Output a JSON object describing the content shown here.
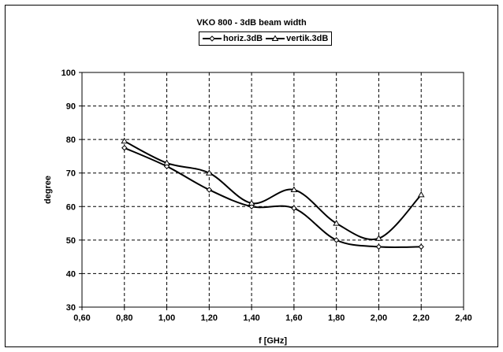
{
  "chart_data": {
    "type": "line",
    "title": "VKO 800 - 3dB beam width",
    "xlabel": "f [GHz]",
    "ylabel": "degree",
    "xlim": [
      0.6,
      2.4
    ],
    "ylim": [
      30,
      100
    ],
    "x_ticks": [
      "0,60",
      "0,80",
      "1,00",
      "1,20",
      "1,40",
      "1,60",
      "1,80",
      "2,00",
      "2,20",
      "2,40"
    ],
    "y_ticks": [
      "30",
      "40",
      "50",
      "60",
      "70",
      "80",
      "90",
      "100"
    ],
    "grid": true,
    "legend_position": "top-center",
    "series": [
      {
        "name": "horiz.3dB",
        "marker": "diamond",
        "color": "#000000",
        "x": [
          0.8,
          1.0,
          1.2,
          1.4,
          1.6,
          1.8,
          2.0,
          2.2
        ],
        "values": [
          77.5,
          72,
          65,
          60,
          59.5,
          50,
          48,
          48
        ]
      },
      {
        "name": "vertik.3dB",
        "marker": "triangle",
        "color": "#000000",
        "x": [
          0.8,
          1.0,
          1.2,
          1.4,
          1.6,
          1.8,
          2.0,
          2.2
        ],
        "values": [
          79.5,
          73,
          70,
          61,
          65,
          55,
          50.5,
          63.5
        ]
      }
    ]
  }
}
